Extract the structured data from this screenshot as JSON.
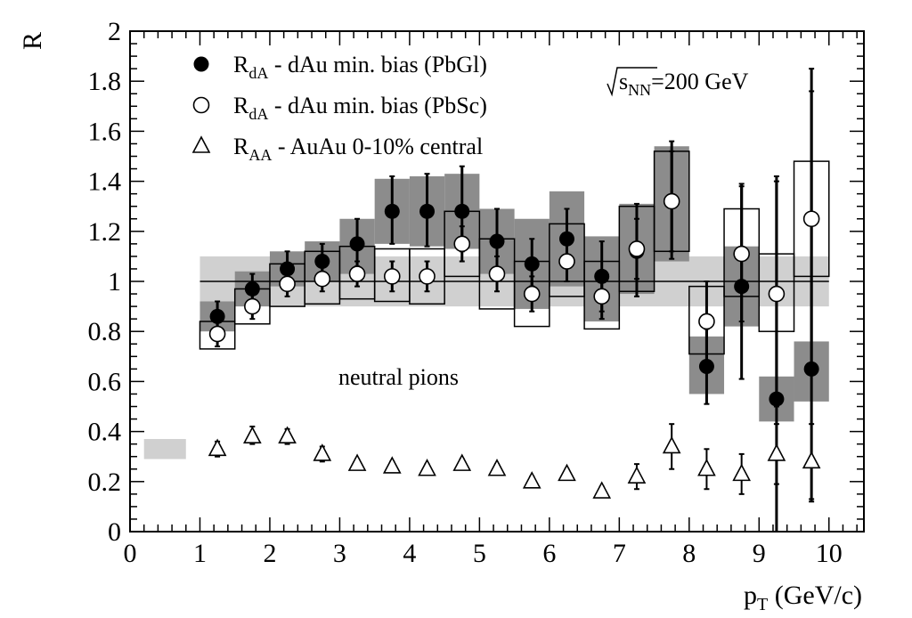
{
  "chart_data": {
    "type": "scatter",
    "xlabel": {
      "main": "p",
      "sub": "T",
      "rest": " (GeV/c)"
    },
    "ylabel": "R",
    "xlim": [
      0,
      10.5
    ],
    "ylim": [
      0,
      2
    ],
    "x_ticks": [
      0,
      1,
      2,
      3,
      4,
      5,
      6,
      7,
      8,
      9,
      10
    ],
    "y_ticks": [
      0,
      0.2,
      0.4,
      0.6,
      0.8,
      1,
      1.2,
      1.4,
      1.6,
      1.8,
      2
    ],
    "y_tick_labels": [
      "0",
      "0.2",
      "0.4",
      "0.6",
      "0.8",
      "1",
      "1.2",
      "1.4",
      "1.6",
      "1.8",
      "2"
    ],
    "x_tick_labels": [
      "0",
      "1",
      "2",
      "3",
      "4",
      "5",
      "6",
      "7",
      "8",
      "9",
      "10"
    ],
    "annotations": {
      "energy": {
        "prefix": "s",
        "sub": "NN",
        "rest": "=200 GeV"
      },
      "particle": "neutral pions"
    },
    "reference_line": 1,
    "reference_band": [
      0.9,
      1.1
    ],
    "auau_norm_band": {
      "x": [
        0.2,
        0.8
      ],
      "y": [
        0.29,
        0.37
      ]
    },
    "series": [
      {
        "name": "R_dA - dAu min. bias (PbGl)",
        "label": {
          "main": "R",
          "sub": "dA",
          "rest": " - dAu min. bias (PbGl)"
        },
        "marker": "filled-circle",
        "x": [
          1.25,
          1.75,
          2.25,
          2.75,
          3.25,
          3.75,
          4.25,
          4.75,
          5.25,
          5.75,
          6.25,
          6.75,
          7.25,
          7.75,
          8.25,
          8.75,
          9.25,
          9.75
        ],
        "y": [
          0.86,
          0.97,
          1.05,
          1.08,
          1.15,
          1.28,
          1.28,
          1.28,
          1.16,
          1.07,
          1.17,
          1.02,
          1.12,
          1.32,
          0.66,
          0.98,
          0.53,
          0.65
        ],
        "err_lo": [
          0.06,
          0.06,
          0.07,
          0.07,
          0.09,
          0.13,
          0.14,
          0.16,
          0.12,
          0.09,
          0.1,
          0.14,
          0.18,
          0.23,
          0.15,
          0.37,
          0.53,
          0.53
        ],
        "err_hi": [
          0.06,
          0.06,
          0.07,
          0.07,
          0.1,
          0.14,
          0.15,
          0.18,
          0.13,
          0.1,
          0.12,
          0.14,
          0.19,
          0.24,
          0.15,
          0.41,
          0.89,
          1.11
        ],
        "sys_lo": [
          0.8,
          0.9,
          0.98,
          1.0,
          1.03,
          1.15,
          1.14,
          1.13,
          1.03,
          0.89,
          0.98,
          0.84,
          0.95,
          1.08,
          0.55,
          0.82,
          0.44,
          0.52
        ],
        "sys_hi": [
          0.92,
          1.04,
          1.12,
          1.16,
          1.25,
          1.41,
          1.42,
          1.43,
          1.29,
          1.25,
          1.36,
          1.18,
          1.31,
          1.54,
          0.78,
          1.14,
          0.62,
          0.76
        ]
      },
      {
        "name": "R_dA - dAu min. bias (PbSc)",
        "label": {
          "main": "R",
          "sub": "dA",
          "rest": " - dAu min. bias (PbSc)"
        },
        "marker": "open-circle",
        "x": [
          1.25,
          1.75,
          2.25,
          2.75,
          3.25,
          3.75,
          4.25,
          4.75,
          5.25,
          5.75,
          6.25,
          6.75,
          7.25,
          7.75,
          8.25,
          8.75,
          9.25,
          9.75
        ],
        "y": [
          0.79,
          0.9,
          0.99,
          1.01,
          1.03,
          1.02,
          1.02,
          1.15,
          1.03,
          0.95,
          1.08,
          0.94,
          1.13,
          1.32,
          0.84,
          1.11,
          0.95,
          1.25
        ],
        "err_lo": [
          0.05,
          0.05,
          0.05,
          0.05,
          0.05,
          0.06,
          0.06,
          0.07,
          0.07,
          0.07,
          0.08,
          0.09,
          0.12,
          0.2,
          0.16,
          0.27,
          0.45,
          0.6
        ],
        "err_hi": [
          0.05,
          0.05,
          0.05,
          0.05,
          0.05,
          0.06,
          0.06,
          0.07,
          0.07,
          0.07,
          0.08,
          0.09,
          0.12,
          0.2,
          0.16,
          0.27,
          0.45,
          0.6
        ],
        "sys_lo": [
          0.73,
          0.83,
          0.9,
          0.91,
          0.93,
          0.92,
          0.91,
          1.02,
          0.89,
          0.82,
          0.94,
          0.81,
          0.96,
          1.12,
          0.71,
          0.94,
          0.8,
          1.02
        ],
        "sys_hi": [
          0.84,
          0.97,
          1.07,
          1.12,
          1.14,
          1.13,
          1.13,
          1.28,
          1.17,
          1.08,
          1.23,
          1.08,
          1.3,
          1.52,
          0.98,
          1.29,
          1.11,
          1.48
        ]
      },
      {
        "name": "R_AA - AuAu 0-10% central",
        "label": {
          "main": "R",
          "sub": "AA",
          "rest": " - AuAu 0-10% central"
        },
        "marker": "open-triangle",
        "x": [
          1.25,
          1.75,
          2.25,
          2.75,
          3.25,
          3.75,
          4.25,
          4.75,
          5.25,
          5.75,
          6.25,
          6.75,
          7.25,
          7.75,
          8.25,
          8.75,
          9.25,
          9.75
        ],
        "y": [
          0.33,
          0.38,
          0.38,
          0.31,
          0.27,
          0.26,
          0.25,
          0.27,
          0.25,
          0.2,
          0.23,
          0.16,
          0.22,
          0.34,
          0.25,
          0.23,
          0.31,
          0.28
        ],
        "err_lo": [
          0.03,
          0.03,
          0.03,
          0.03,
          0.02,
          0.02,
          0.02,
          0.02,
          0.02,
          0.02,
          0.02,
          0.02,
          0.05,
          0.09,
          0.08,
          0.08,
          0.12,
          0.15
        ],
        "err_hi": [
          0.03,
          0.04,
          0.03,
          0.03,
          0.02,
          0.02,
          0.02,
          0.02,
          0.02,
          0.02,
          0.02,
          0.02,
          0.05,
          0.09,
          0.08,
          0.08,
          0.12,
          0.15
        ]
      }
    ]
  }
}
